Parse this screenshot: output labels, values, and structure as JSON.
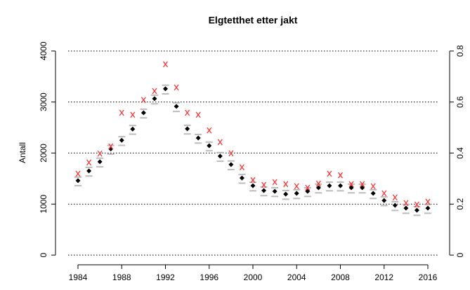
{
  "chart_data": {
    "type": "scatter",
    "title": "Elgtetthet etter jakt",
    "y_label": "Antall",
    "x": [
      1984,
      1985,
      1986,
      1987,
      1988,
      1989,
      1990,
      1991,
      1992,
      1993,
      1994,
      1995,
      1996,
      1997,
      1998,
      1999,
      2000,
      2001,
      2002,
      2003,
      2004,
      2005,
      2006,
      2007,
      2008,
      2009,
      2010,
      2011,
      2012,
      2013,
      2014,
      2015,
      2016
    ],
    "series": [
      {
        "color": "#bbbbbb",
        "marker": "dash",
        "values": [
          1360,
          1550,
          1730,
          1980,
          2150,
          2370,
          2690,
          2965,
          3160,
          2815,
          2375,
          2195,
          2045,
          1840,
          1675,
          1410,
          1260,
          1165,
          1150,
          1095,
          1110,
          1150,
          1220,
          1260,
          1260,
          1220,
          1220,
          1110,
          970,
          875,
          820,
          780,
          820
        ]
      },
      {
        "color": "#bbbbbb",
        "marker": "dash",
        "values": [
          1530,
          1720,
          1900,
          2150,
          2320,
          2540,
          2860,
          3135,
          3330,
          2985,
          2545,
          2365,
          2215,
          2010,
          1845,
          1580,
          1430,
          1335,
          1320,
          1265,
          1280,
          1320,
          1390,
          1430,
          1430,
          1390,
          1390,
          1280,
          1140,
          1045,
          990,
          950,
          990
        ]
      },
      {
        "color": "#000000",
        "marker": "diamond",
        "values": [
          1460,
          1650,
          1830,
          2080,
          2250,
          2470,
          2790,
          3065,
          3260,
          2915,
          2475,
          2295,
          2145,
          1940,
          1775,
          1510,
          1360,
          1265,
          1250,
          1195,
          1210,
          1250,
          1320,
          1360,
          1360,
          1320,
          1320,
          1210,
          1070,
          975,
          920,
          880,
          920
        ]
      },
      {
        "color": "#ff3333",
        "marker": "x",
        "values": [
          1595,
          1815,
          1990,
          2130,
          2790,
          2750,
          3040,
          3215,
          3740,
          3285,
          2790,
          2750,
          2445,
          2215,
          1995,
          1720,
          1470,
          1375,
          1430,
          1390,
          1350,
          1320,
          1400,
          1595,
          1565,
          1390,
          1390,
          1350,
          1210,
          1130,
          1020,
          990,
          1045
        ]
      }
    ],
    "xlim": [
      1983.1,
      2016.9
    ],
    "xticks": [
      1984,
      1988,
      1992,
      1996,
      2000,
      2004,
      2008,
      2012,
      2016
    ],
    "ylim": [
      -190,
      4190
    ],
    "yticks": [
      0,
      1000,
      2000,
      3000,
      4000
    ],
    "y2lim": [
      -0.038,
      0.838
    ],
    "y2ticks": [
      0,
      0.2,
      0.4,
      0.6,
      0.8
    ],
    "grid": true
  }
}
